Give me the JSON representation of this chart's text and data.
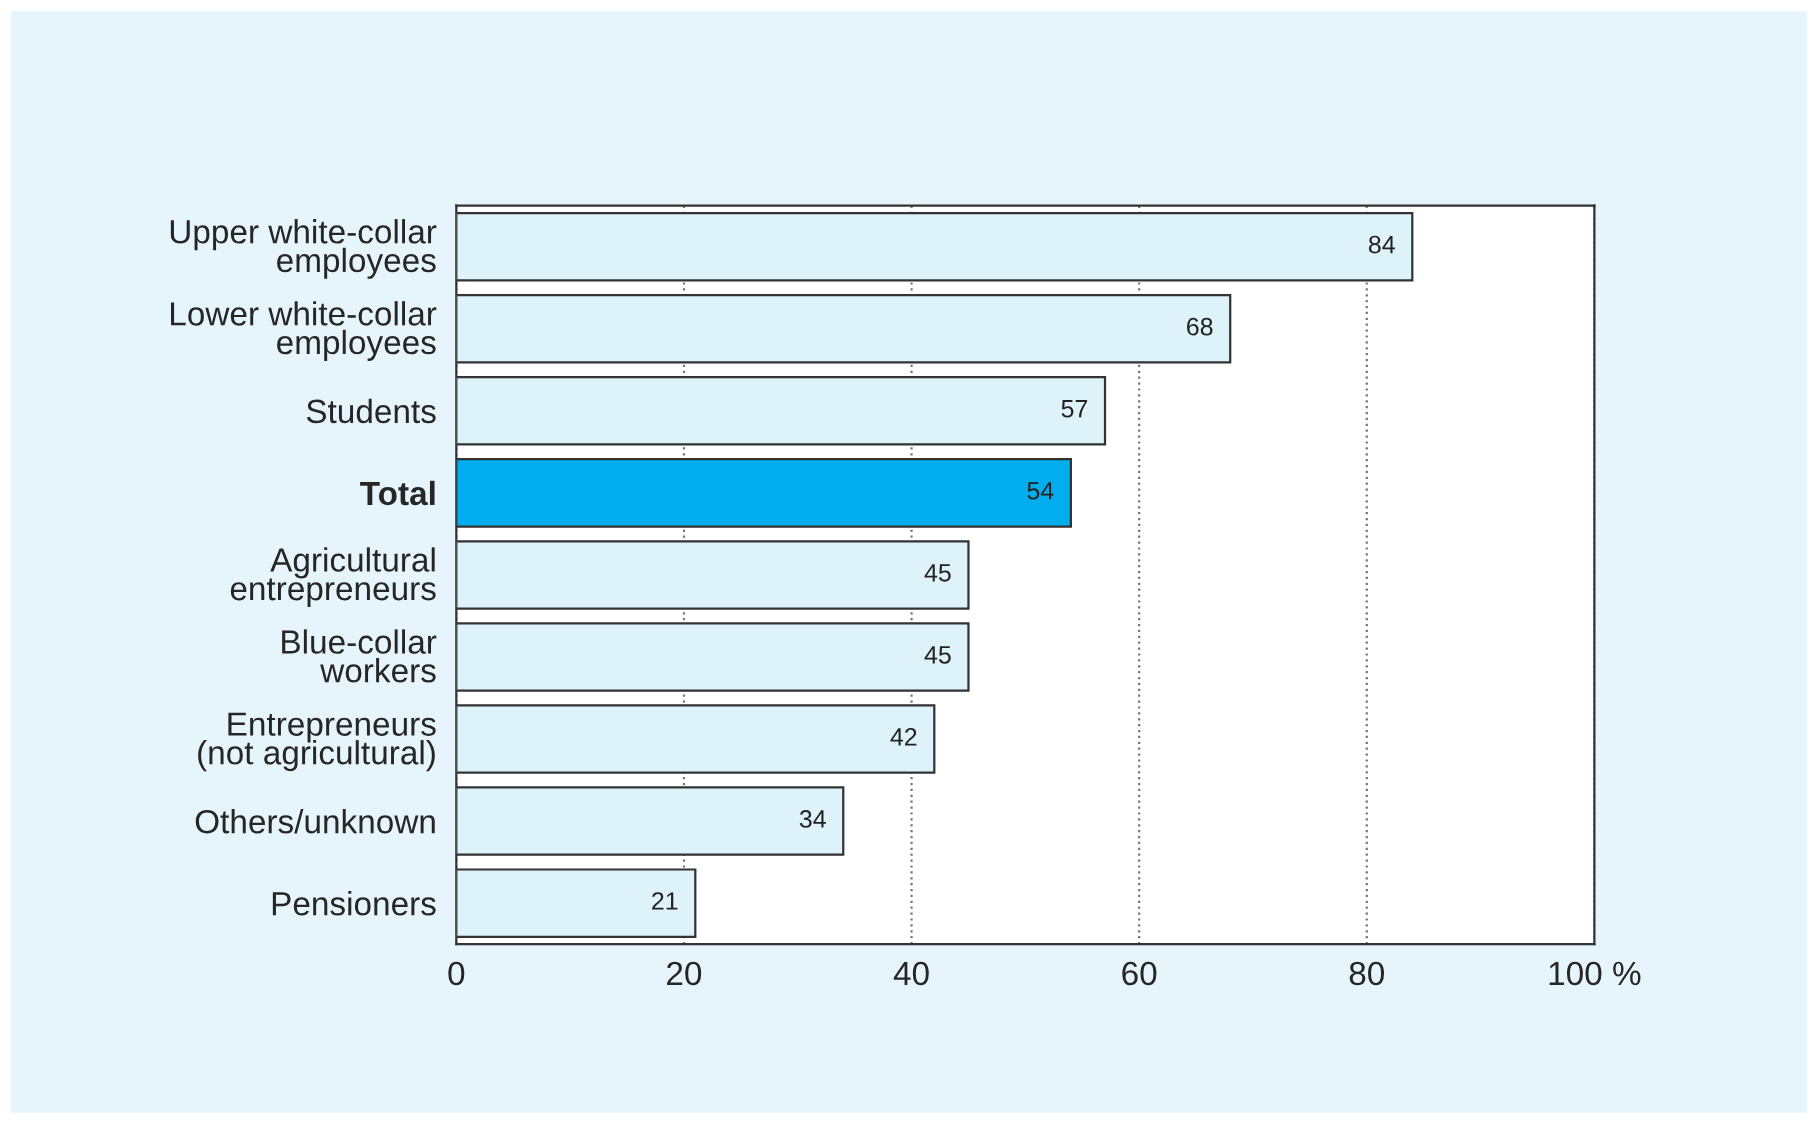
{
  "chart_data": {
    "type": "bar",
    "orientation": "horizontal",
    "categories": [
      "Upper white-collar\nemployees",
      "Lower white-collar\nemployees",
      "Students",
      "Total",
      "Agricultural\nentrepreneurs",
      "Blue-collar\nworkers",
      "Entrepreneurs\n(not agricultural)",
      "Others/unknown",
      "Pensioners"
    ],
    "values": [
      84,
      68,
      57,
      54,
      45,
      45,
      42,
      34,
      21
    ],
    "colors": [
      "#def2fa",
      "#def2fa",
      "#def2fa",
      "#00aeef",
      "#def2fa",
      "#def2fa",
      "#def2fa",
      "#def2fa",
      "#def2fa"
    ],
    "xlim": [
      0,
      100
    ],
    "xticks": [
      0,
      20,
      40,
      60,
      80,
      {
        "value": 100,
        "label": "100 %"
      }
    ],
    "grid": "x",
    "data_labels": true,
    "legend": false
  }
}
